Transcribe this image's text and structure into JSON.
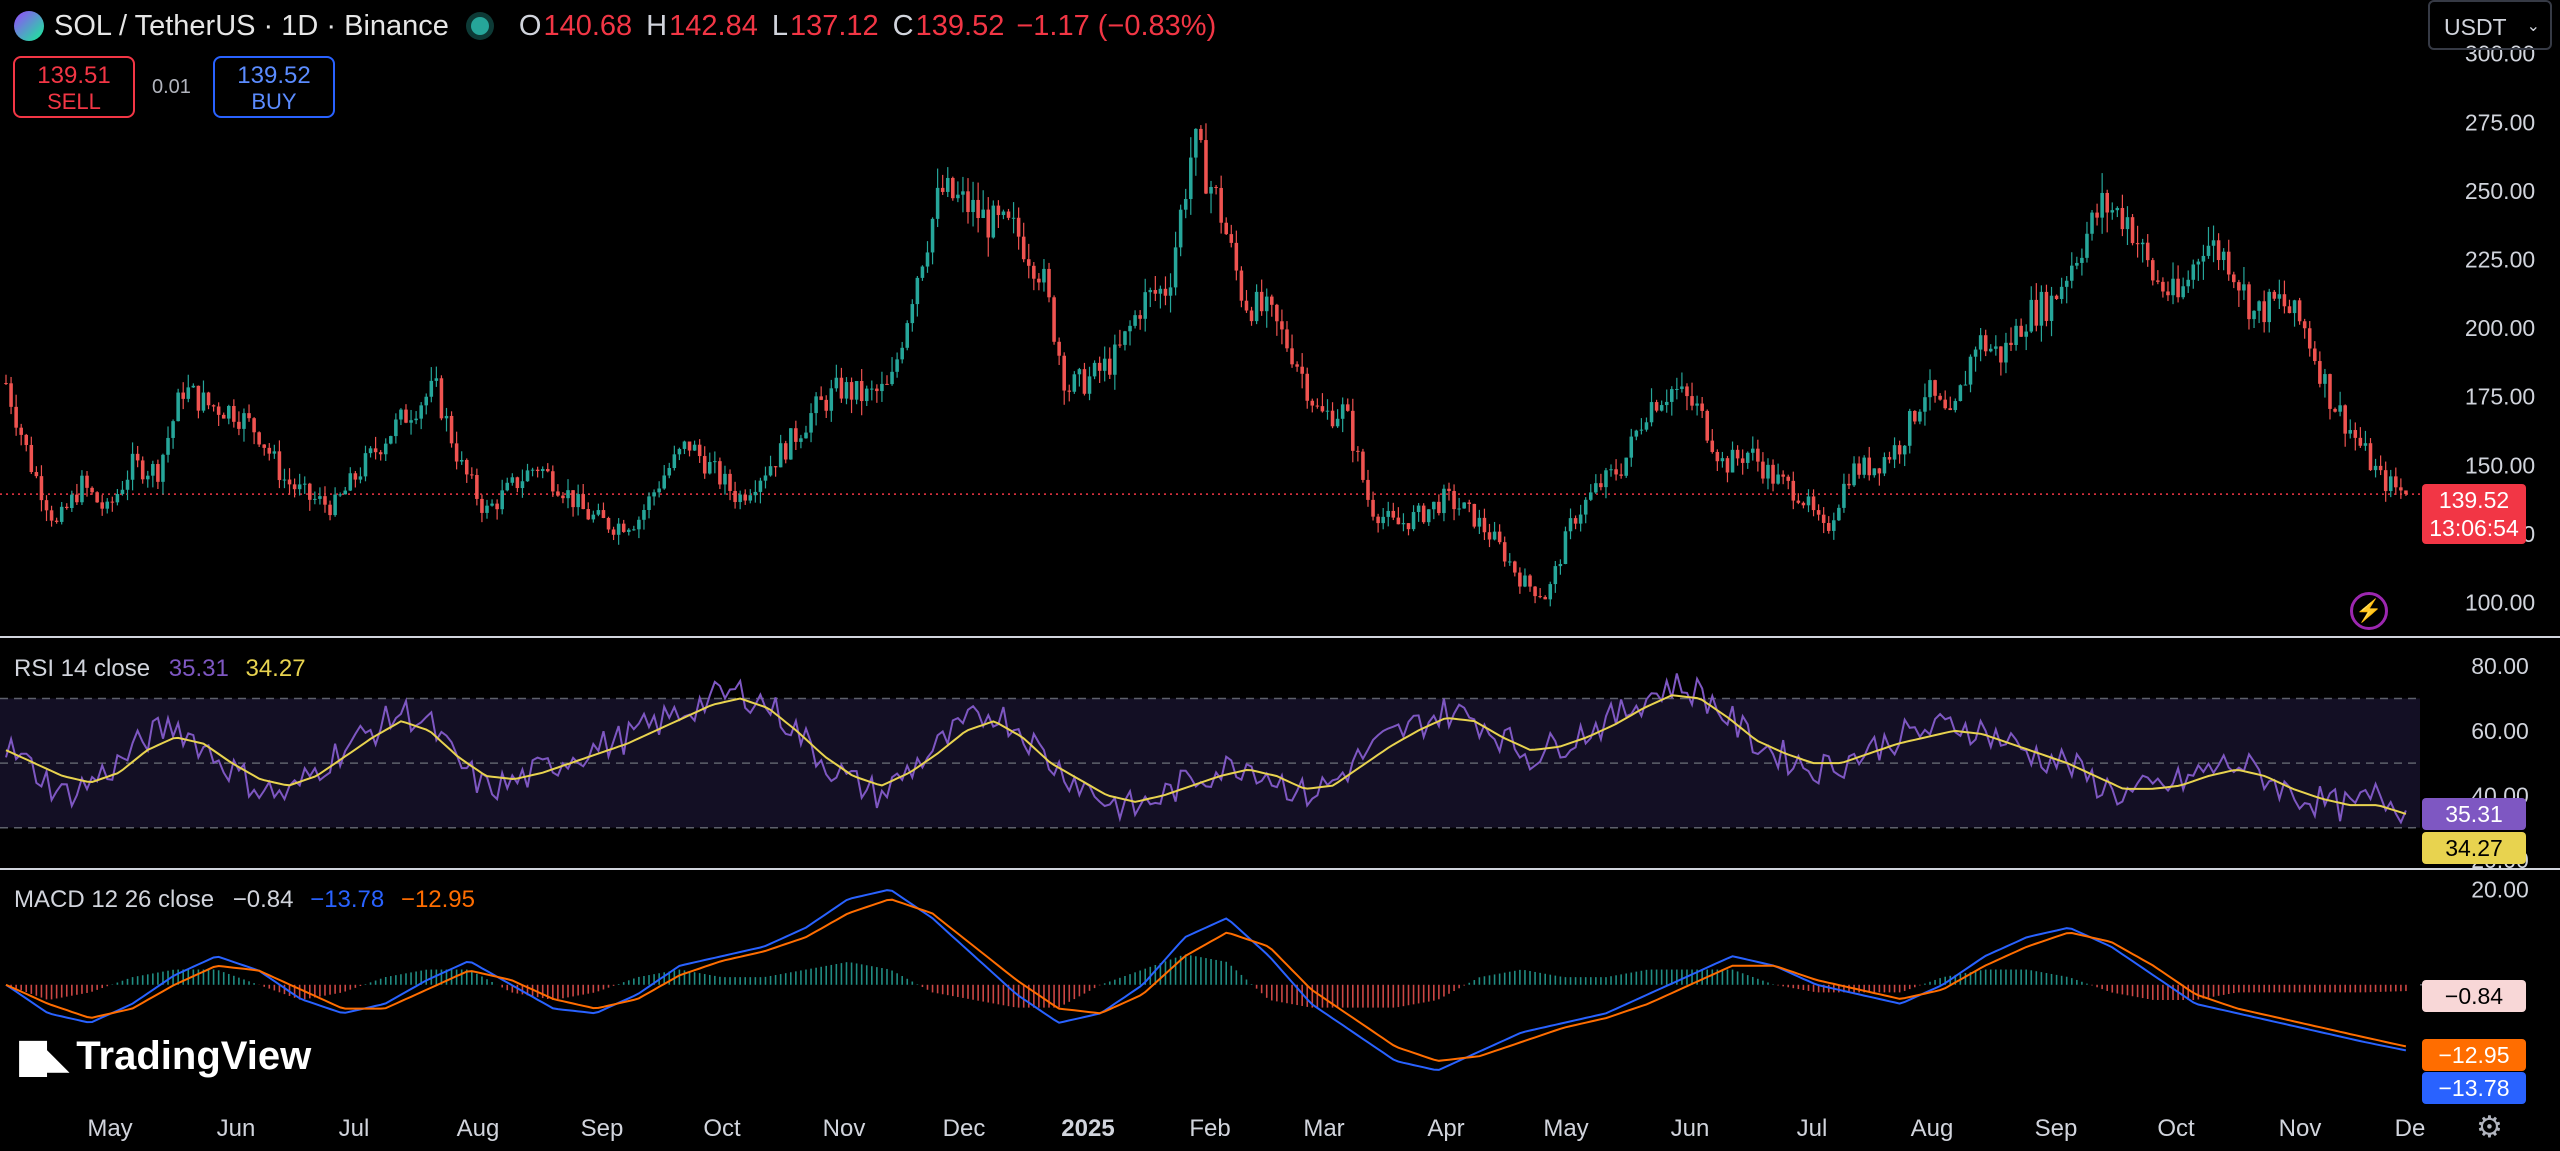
{
  "header": {
    "symbol": "SOL / TetherUS · 1D · Binance",
    "o_label": "O",
    "o_value": "140.68",
    "h_label": "H",
    "h_value": "142.84",
    "l_label": "L",
    "l_value": "137.12",
    "c_label": "C",
    "c_value": "139.52",
    "change": "−1.17 (−0.83%)"
  },
  "trade": {
    "sell_price": "139.51",
    "sell_label": "SELL",
    "spread": "0.01",
    "buy_price": "139.52",
    "buy_label": "BUY"
  },
  "currency": {
    "value": "USDT"
  },
  "price_axis": {
    "ticks": [
      "300.00",
      "275.00",
      "250.00",
      "225.00",
      "200.00",
      "175.00",
      "150.00",
      "125.00",
      "100.00"
    ],
    "current_price": "139.52",
    "countdown": "13:06:54"
  },
  "rsi": {
    "label": "RSI 14 close",
    "value": "35.31",
    "ma_value": "34.27",
    "ticks": [
      "80.00",
      "60.00",
      "40.00",
      "20.00"
    ]
  },
  "macd": {
    "label": "MACD 12 26 close",
    "hist_value": "−0.84",
    "macd_value": "−13.78",
    "signal_value": "−12.95",
    "ticks": [
      "20.00"
    ]
  },
  "time_axis": [
    "May",
    "Jun",
    "Jul",
    "Aug",
    "Sep",
    "Oct",
    "Nov",
    "Dec",
    "2025",
    "Feb",
    "Mar",
    "Apr",
    "May",
    "Jun",
    "Jul",
    "Aug",
    "Sep",
    "Oct",
    "Nov",
    "De"
  ],
  "brand": {
    "name": "TradingView"
  },
  "colors": {
    "up": "#26a69a",
    "down": "#ef5350",
    "rsi": "#7e57c2",
    "rsi_ma": "#e8d34f",
    "macd": "#2962ff",
    "signal": "#ff6d00"
  },
  "icons": {
    "alert": "lightning-icon",
    "settings": "gear-icon"
  },
  "chart_data": [
    {
      "type": "line",
      "name": "price",
      "title": "",
      "ylim": [
        90,
        305
      ],
      "y": [
        180,
        150,
        128,
        143,
        133,
        150,
        148,
        178,
        172,
        170,
        162,
        145,
        138,
        135,
        148,
        160,
        170,
        178,
        150,
        133,
        142,
        150,
        142,
        132,
        128,
        130,
        146,
        158,
        148,
        138,
        148,
        158,
        170,
        178,
        175,
        178,
        218,
        250,
        245,
        238,
        235,
        220,
        178,
        182,
        190,
        210,
        215,
        268,
        245,
        210,
        205,
        190,
        168,
        170,
        135,
        128,
        132,
        138,
        132,
        122,
        108,
        102,
        130,
        142,
        150,
        172,
        178,
        170,
        150,
        155,
        145,
        140,
        125,
        148,
        150,
        158,
        178,
        165,
        196,
        190,
        205,
        210,
        228,
        245,
        240,
        218,
        210,
        232,
        225,
        205,
        210,
        200,
        175,
        160,
        145,
        139.52
      ]
    },
    {
      "type": "line",
      "name": "rsi",
      "title": "",
      "ylim": [
        20,
        85
      ],
      "y": [
        55,
        48,
        40,
        44,
        50,
        58,
        62,
        55,
        48,
        42,
        40,
        48,
        55,
        60,
        66,
        62,
        50,
        42,
        44,
        48,
        52,
        55,
        58,
        62,
        66,
        70,
        72,
        68,
        60,
        50,
        44,
        40,
        48,
        55,
        62,
        66,
        60,
        50,
        44,
        38,
        36,
        40,
        45,
        48,
        50,
        45,
        40,
        44,
        52,
        58,
        62,
        66,
        64,
        58,
        52,
        56,
        60,
        64,
        70,
        74,
        72,
        64,
        56,
        52,
        48,
        50,
        54,
        58,
        60,
        62,
        60,
        56,
        52,
        50,
        44,
        40,
        42,
        44,
        48,
        50,
        46,
        40,
        38,
        36,
        40,
        35.31
      ],
      "ma": [
        54,
        50,
        46,
        44,
        47,
        54,
        58,
        56,
        50,
        45,
        43,
        46,
        52,
        58,
        63,
        60,
        52,
        46,
        45,
        47,
        50,
        53,
        56,
        60,
        64,
        68,
        70,
        67,
        60,
        52,
        46,
        43,
        47,
        53,
        60,
        63,
        58,
        50,
        45,
        40,
        38,
        40,
        43,
        46,
        48,
        46,
        42,
        43,
        49,
        55,
        60,
        64,
        63,
        58,
        54,
        55,
        58,
        62,
        67,
        71,
        70,
        64,
        57,
        53,
        50,
        50,
        53,
        56,
        58,
        60,
        59,
        56,
        53,
        50,
        46,
        42,
        42,
        43,
        46,
        48,
        46,
        42,
        39,
        37,
        37,
        34.27
      ]
    },
    {
      "type": "line",
      "name": "macd",
      "title": "",
      "ylim": [
        -20,
        22
      ],
      "macd": [
        0,
        -6,
        -8,
        -4,
        2,
        6,
        3,
        -3,
        -6,
        -4,
        1,
        5,
        0,
        -5,
        -6,
        -2,
        4,
        6,
        8,
        12,
        18,
        20,
        14,
        6,
        -2,
        -8,
        -6,
        0,
        10,
        14,
        6,
        -4,
        -10,
        -16,
        -18,
        -14,
        -10,
        -8,
        -6,
        -2,
        2,
        6,
        4,
        0,
        -2,
        -4,
        0,
        6,
        10,
        12,
        8,
        2,
        -4,
        -6,
        -8,
        -10,
        -12,
        -13.78
      ],
      "signal": [
        0,
        -4,
        -7,
        -5,
        0,
        4,
        3,
        -1,
        -5,
        -5,
        -1,
        3,
        1,
        -3,
        -5,
        -3,
        2,
        5,
        7,
        10,
        15,
        18,
        15,
        8,
        1,
        -5,
        -6,
        -2,
        6,
        11,
        8,
        -1,
        -7,
        -13,
        -16,
        -15,
        -12,
        -9,
        -7,
        -4,
        0,
        4,
        4,
        1,
        -1,
        -3,
        -1,
        4,
        8,
        11,
        9,
        4,
        -2,
        -5,
        -7,
        -9,
        -11,
        -12.95
      ]
    }
  ]
}
